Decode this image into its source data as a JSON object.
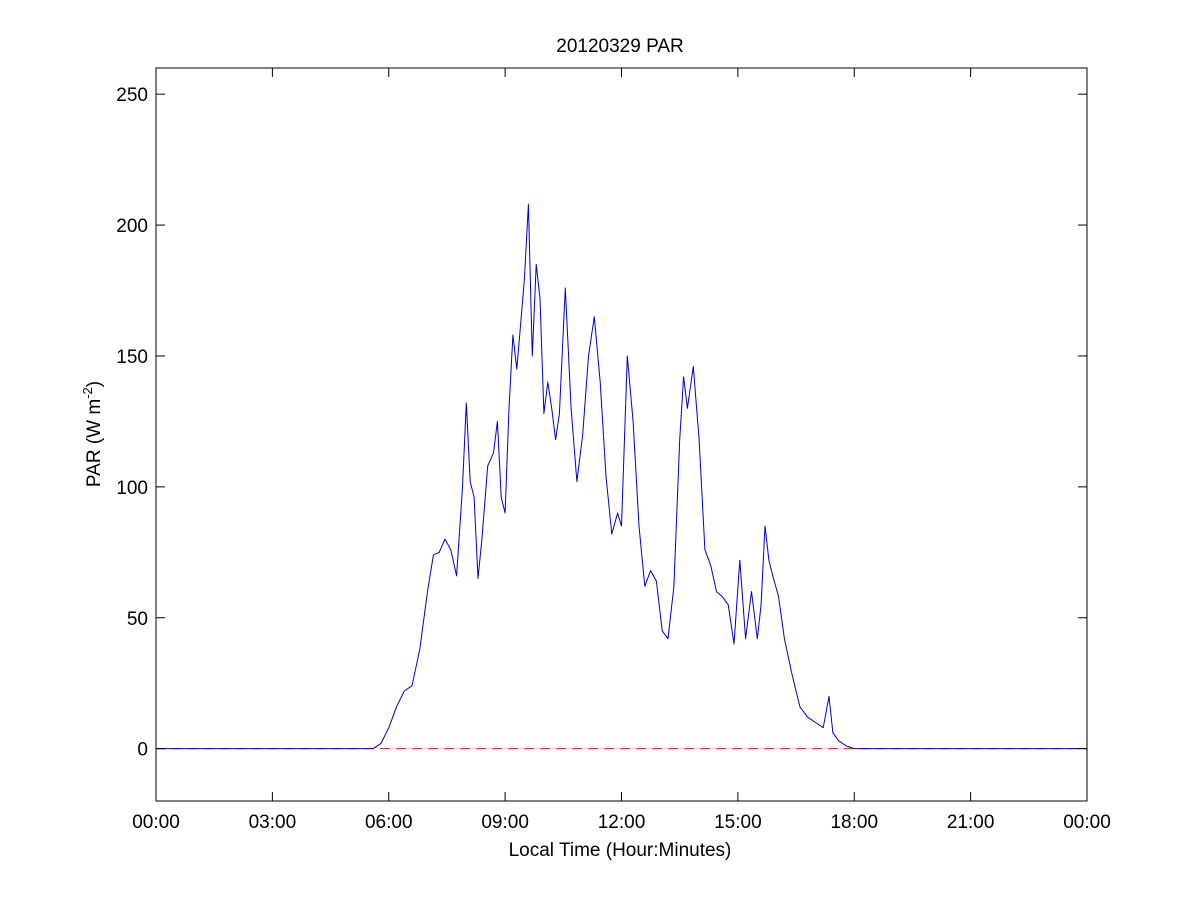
{
  "chart_data": {
    "type": "line",
    "title": "20120329 PAR",
    "xlabel": "Local Time (Hour:Minutes)",
    "ylabel": {
      "prefix": "PAR (W m",
      "superscript": "-2",
      "suffix": ")"
    },
    "xlim": [
      0,
      24
    ],
    "ylim": [
      -20,
      260
    ],
    "x_ticks": [
      0,
      3,
      6,
      9,
      12,
      15,
      18,
      21,
      24
    ],
    "x_tick_labels": [
      "00:00",
      "03:00",
      "06:00",
      "09:00",
      "12:00",
      "15:00",
      "18:00",
      "21:00",
      "00:00"
    ],
    "y_ticks": [
      0,
      50,
      100,
      150,
      200,
      250
    ],
    "y_tick_labels": [
      "0",
      "50",
      "100",
      "150",
      "200",
      "250"
    ],
    "grid": false,
    "legend": "none",
    "reference_line": {
      "y": 0,
      "color": "#e02020",
      "style": "dashed"
    },
    "series": [
      {
        "color": "#0000cc",
        "x": [
          0,
          5.6,
          5.8,
          6.0,
          6.2,
          6.4,
          6.6,
          6.8,
          7.0,
          7.15,
          7.3,
          7.45,
          7.6,
          7.75,
          7.9,
          8.0,
          8.1,
          8.2,
          8.3,
          8.4,
          8.55,
          8.7,
          8.8,
          8.9,
          9.0,
          9.1,
          9.2,
          9.3,
          9.4,
          9.5,
          9.6,
          9.7,
          9.8,
          9.9,
          10.0,
          10.1,
          10.2,
          10.3,
          10.4,
          10.55,
          10.7,
          10.85,
          11.0,
          11.15,
          11.3,
          11.45,
          11.6,
          11.75,
          11.9,
          12.0,
          12.15,
          12.3,
          12.45,
          12.6,
          12.75,
          12.9,
          13.05,
          13.2,
          13.35,
          13.5,
          13.6,
          13.7,
          13.85,
          14.0,
          14.15,
          14.3,
          14.45,
          14.6,
          14.75,
          14.9,
          15.05,
          15.2,
          15.35,
          15.5,
          15.6,
          15.7,
          15.8,
          15.9,
          16.05,
          16.2,
          16.4,
          16.6,
          16.8,
          17.0,
          17.2,
          17.35,
          17.45,
          17.6,
          17.8,
          18.0,
          18.15,
          18.3,
          24
        ],
        "y": [
          0,
          0,
          2,
          8,
          16,
          22,
          24,
          38,
          60,
          74,
          75,
          80,
          76,
          66,
          100,
          132,
          102,
          96,
          65,
          80,
          108,
          113,
          125,
          96,
          90,
          130,
          158,
          145,
          162,
          180,
          208,
          150,
          185,
          172,
          128,
          140,
          130,
          118,
          128,
          176,
          130,
          102,
          120,
          150,
          165,
          140,
          104,
          82,
          90,
          85,
          150,
          125,
          85,
          62,
          68,
          64,
          45,
          42,
          62,
          118,
          142,
          130,
          146,
          118,
          76,
          70,
          60,
          58,
          55,
          40,
          72,
          42,
          60,
          42,
          55,
          85,
          72,
          66,
          58,
          42,
          28,
          16,
          12,
          10,
          8,
          20,
          6,
          3,
          1,
          0,
          0,
          0,
          0
        ]
      }
    ]
  }
}
